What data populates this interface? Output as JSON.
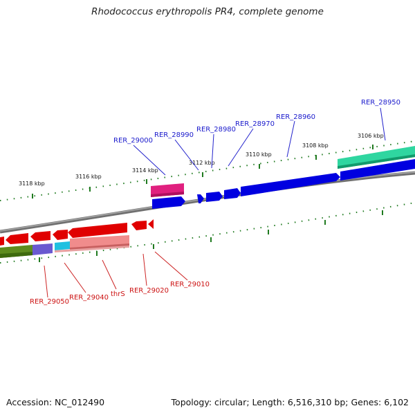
{
  "title": "Rhodococcus erythropolis PR4, complete genome",
  "footer": {
    "accession_label": "Accession:",
    "accession": "NC_012490",
    "topology_label": "Topology:",
    "topology": "circular",
    "length_label": "Length:",
    "length": "6,516,310 bp",
    "genes_label": "Genes:",
    "genes": "6,102"
  },
  "ticks": [
    "3106 kbp",
    "3108 kbp",
    "3110 kbp",
    "3112 kbp",
    "3114 kbp",
    "3116 kbp",
    "3118 kbp"
  ],
  "forward_genes": [
    "RER_28950",
    "RER_28960",
    "RER_28970",
    "RER_28980",
    "RER_28990",
    "RER_29000"
  ],
  "reverse_genes": [
    "RER_29010",
    "RER_29020",
    "thrS",
    "RER_29040",
    "RER_29050"
  ],
  "colors": {
    "forward": "#0000e0",
    "reverse": "#e00000",
    "forward_label": "#1a1acc",
    "reverse_label": "#cc1111",
    "tick": "#1f7a1f",
    "backbone": "#808080",
    "teal": "#2fd6a0",
    "magenta": "#e0207f",
    "olive": "#5e8c1e",
    "purple": "#6a5ad0",
    "cyan": "#20c0e0",
    "salmon": "#f08080"
  }
}
